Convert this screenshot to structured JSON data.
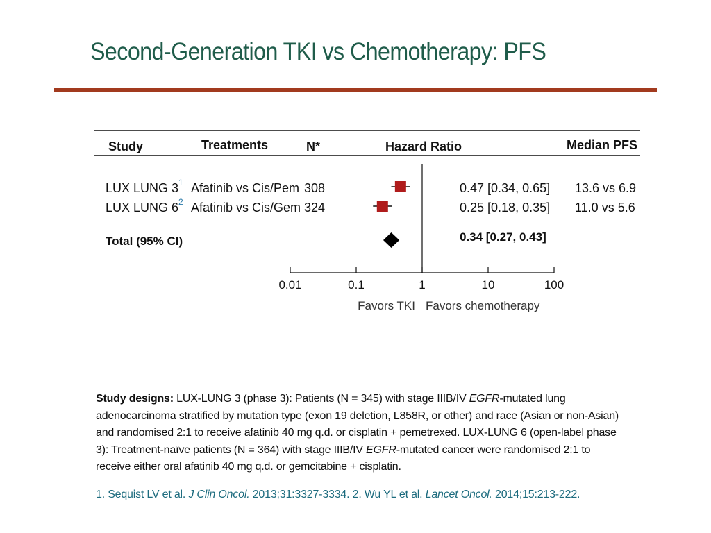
{
  "slide": {
    "title": "Second-Generation TKI vs Chemotherapy: PFS"
  },
  "table": {
    "headers": {
      "study": "Study",
      "treatments": "Treatments",
      "n": "N*",
      "hazard_ratio": "Hazard Ratio",
      "median_pfs": "Median PFS"
    },
    "rows": [
      {
        "study": "LUX LUNG 3",
        "ref": "1",
        "treatment": "Afatinib vs Cis/Pem",
        "n": "308",
        "hr_text": "0.47 [0.34, 0.65]",
        "pfs": "13.6 vs 6.9"
      },
      {
        "study": "LUX LUNG 6",
        "ref": "2",
        "treatment": "Afatinib vs Cis/Gem",
        "n": "324",
        "hr_text": "0.25 [0.18, 0.35]",
        "pfs": "11.0 vs 5.6"
      }
    ],
    "total": {
      "label": "Total (95% CI)",
      "hr_text": "0.34 [0.27, 0.43]"
    }
  },
  "chart_data": {
    "type": "scatter",
    "subtype": "forest-plot",
    "x_scale": "log",
    "xlim": [
      0.01,
      100
    ],
    "x_ticks": [
      "0.01",
      "0.1",
      "1",
      "10",
      "100"
    ],
    "x_tick_values": [
      0.01,
      0.1,
      1,
      10,
      100
    ],
    "reference_line": 1,
    "studies": [
      {
        "name": "LUX LUNG 3",
        "hr": 0.47,
        "ci": [
          0.34,
          0.65
        ]
      },
      {
        "name": "LUX LUNG 6",
        "hr": 0.25,
        "ci": [
          0.18,
          0.35
        ]
      }
    ],
    "pooled": {
      "name": "Total (95% CI)",
      "hr": 0.34,
      "ci": [
        0.27,
        0.43
      ]
    },
    "favors_left": "Favors TKI",
    "favors_right": "Favors chemotherapy",
    "colors": {
      "study_marker": "#b01c1c",
      "pooled_marker": "#000000"
    }
  },
  "footer": {
    "designs_label": "Study designs:",
    "designs_text_1": " LUX-LUNG 3 (phase 3): Patients (N = 345) with stage IIIB/IV ",
    "egfr_1": "EGFR",
    "designs_text_2": "-mutated lung adenocarcinoma stratified by mutation type (exon 19 deletion, L858R, or other) and race (Asian or non-Asian) and randomised 2:1 to receive afatinib 40 mg q.d. or cisplatin + pemetrexed. LUX-LUNG 6 (open-label phase 3): Treatment-naïve patients (N = 364) with stage IIIB/IV ",
    "egfr_2": "EGFR",
    "designs_text_3": "-mutated cancer were randomised 2:1 to receive either oral afatinib 40 mg q.d. or gemcitabine + cisplatin.",
    "ref1_a": "1. Sequist LV et al. ",
    "ref1_journal": "J Clin Oncol.",
    "ref1_b": " 2013;31:3327-3334. 2. Wu YL et al. ",
    "ref2_journal": "Lancet Oncol.",
    "ref2_b": " 2014;15:213-222."
  }
}
